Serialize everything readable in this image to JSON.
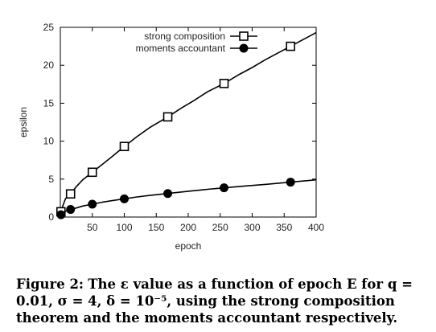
{
  "caption": {
    "label": "Figure 2:",
    "text": "The ε value as a function of epoch E for q = 0.01, σ = 4, δ = 10⁻⁵, using the strong composition theorem and the moments accountant respectively."
  },
  "chart_data": {
    "type": "line",
    "xlabel": "epoch",
    "ylabel": "epsilon",
    "xlim": [
      0,
      400
    ],
    "ylim": [
      0,
      25
    ],
    "xticks": [
      50,
      100,
      150,
      200,
      250,
      300,
      350,
      400
    ],
    "yticks": [
      0,
      5,
      10,
      15,
      20,
      25
    ],
    "grid": false,
    "legend_position": "top-right",
    "series": [
      {
        "name": "strong composition",
        "marker": "open-square",
        "color": "#000000",
        "curve_x": [
          1,
          4,
          8,
          12,
          16,
          25,
          35,
          50,
          65,
          80,
          100,
          120,
          140,
          168,
          190,
          210,
          230,
          256,
          280,
          300,
          320,
          340,
          360,
          380,
          400
        ],
        "curve_y": [
          0.7,
          1.5,
          2.4,
          2.8,
          3.05,
          4.0,
          4.9,
          5.9,
          6.9,
          7.9,
          9.3,
          10.6,
          11.8,
          13.2,
          14.4,
          15.4,
          16.5,
          17.6,
          18.8,
          19.7,
          20.7,
          21.6,
          22.5,
          23.4,
          24.3
        ],
        "marker_x": [
          1,
          16,
          50,
          100,
          168,
          256,
          360
        ],
        "marker_y": [
          0.7,
          3.05,
          5.9,
          9.3,
          13.2,
          17.6,
          22.5
        ]
      },
      {
        "name": "moments accountant",
        "marker": "filled-circle",
        "color": "#000000",
        "curve_x": [
          1,
          4,
          8,
          16,
          25,
          35,
          50,
          65,
          80,
          100,
          120,
          140,
          168,
          200,
          230,
          256,
          290,
          320,
          360,
          400
        ],
        "curve_y": [
          0.3,
          0.5,
          0.75,
          1.0,
          1.2,
          1.45,
          1.7,
          1.95,
          2.15,
          2.4,
          2.65,
          2.85,
          3.1,
          3.4,
          3.65,
          3.85,
          4.1,
          4.3,
          4.6,
          4.9
        ],
        "marker_x": [
          1,
          16,
          50,
          100,
          168,
          256,
          360
        ],
        "marker_y": [
          0.3,
          1.0,
          1.7,
          2.4,
          3.1,
          3.85,
          4.6
        ]
      }
    ]
  }
}
